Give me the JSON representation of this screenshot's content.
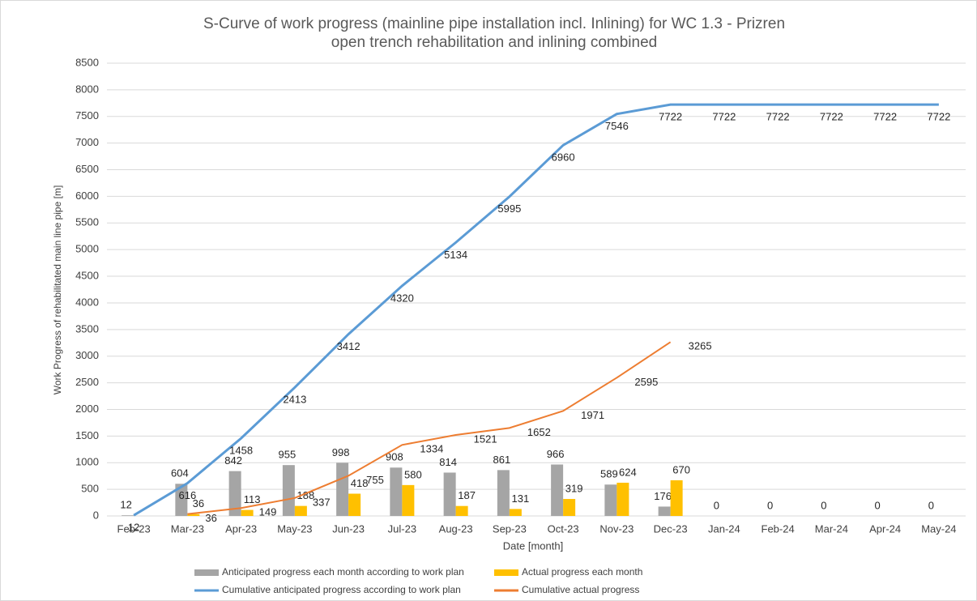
{
  "chart_data": {
    "type": "bar-line",
    "title": [
      "S-Curve of work progress (mainline pipe installation incl. Inlining) for WC 1.3 - Prizren",
      "open trench rehabilitation and inlining combined"
    ],
    "x_label": "Date [month]",
    "y_label": "Work Progress of rehabilitated main line pipe [m]",
    "categories": [
      "Feb-23",
      "Mar-23",
      "Apr-23",
      "May-23",
      "Jun-23",
      "Jul-23",
      "Aug-23",
      "Sep-23",
      "Oct-23",
      "Nov-23",
      "Dec-23",
      "Jan-24",
      "Feb-24",
      "Mar-24",
      "Apr-24",
      "May-24"
    ],
    "series": [
      {
        "name": "Anticipated progress each month according to work plan",
        "kind": "bar",
        "color": "#a5a5a5",
        "values": [
          12,
          604,
          842,
          955,
          998,
          908,
          814,
          861,
          966,
          589,
          176,
          0,
          0,
          0,
          0,
          0
        ]
      },
      {
        "name": "Actual progress each month",
        "kind": "bar",
        "color": "#ffc000",
        "values": [
          null,
          36,
          113,
          188,
          418,
          580,
          187,
          131,
          319,
          624,
          670,
          null,
          null,
          null,
          null,
          null
        ]
      },
      {
        "name": "Cumulative anticipated progress according to work plan",
        "kind": "line",
        "color": "#5b9bd5",
        "values": [
          12,
          616,
          1458,
          2413,
          3412,
          4320,
          5134,
          5995,
          6960,
          7546,
          7722,
          7722,
          7722,
          7722,
          7722,
          7722
        ]
      },
      {
        "name": "Cumulative actual progress",
        "kind": "line",
        "color": "#ed7d31",
        "values": [
          null,
          36,
          149,
          337,
          755,
          1334,
          1521,
          1652,
          1971,
          2595,
          3265,
          null,
          null,
          null,
          null,
          null
        ]
      }
    ],
    "ylim": [
      0,
      8500
    ],
    "yticks": [
      0,
      500,
      1000,
      1500,
      2000,
      2500,
      3000,
      3500,
      4000,
      4500,
      5000,
      5500,
      6000,
      6500,
      7000,
      7500,
      8000,
      8500
    ],
    "grid": true
  }
}
